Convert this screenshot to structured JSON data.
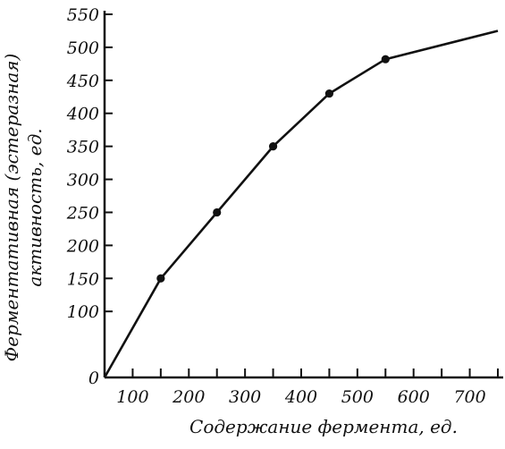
{
  "chart_data": {
    "type": "line",
    "title": "",
    "xlabel": "Содержание фермента, ед.",
    "ylabel_line1": "Ферментативная (эстеразная)",
    "ylabel_line2": "активность, ед.",
    "xlim": [
      50,
      750
    ],
    "ylim": [
      0,
      550
    ],
    "x_ticks": [
      100,
      200,
      300,
      400,
      500,
      600,
      700
    ],
    "y_ticks": [
      0,
      100,
      150,
      200,
      250,
      300,
      350,
      400,
      450,
      500,
      550
    ],
    "grid": false,
    "series": [
      {
        "markers": [
          [
            150,
            150
          ],
          [
            250,
            250
          ],
          [
            350,
            350
          ],
          [
            450,
            430
          ],
          [
            550,
            482
          ]
        ],
        "line": [
          [
            50,
            0
          ],
          [
            150,
            150
          ],
          [
            250,
            250
          ],
          [
            350,
            350
          ],
          [
            450,
            430
          ],
          [
            550,
            482
          ],
          [
            750,
            525
          ]
        ],
        "color": "#111111"
      }
    ]
  }
}
